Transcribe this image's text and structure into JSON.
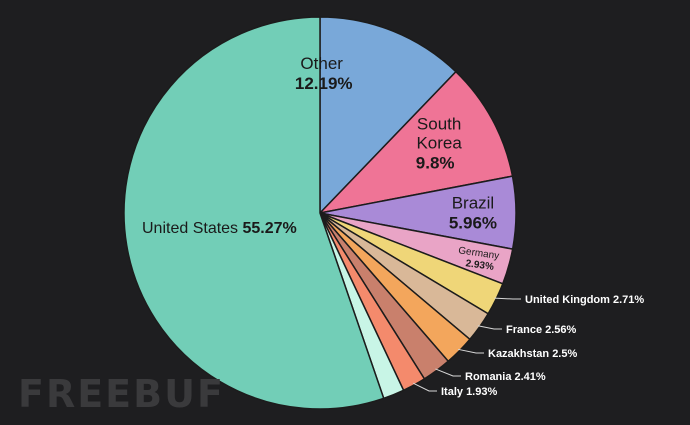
{
  "chart_data": {
    "type": "pie",
    "title": "",
    "slices": [
      {
        "label": "Other",
        "value": 12.19,
        "value_label": "12.19%",
        "color": "#79a8d9"
      },
      {
        "label": "South Korea",
        "value": 9.8,
        "value_label": "9.8%",
        "color": "#ef7496"
      },
      {
        "label": "Brazil",
        "value": 5.96,
        "value_label": "5.96%",
        "color": "#a98ad7"
      },
      {
        "label": "Germany",
        "value": 2.93,
        "value_label": "2.93%",
        "color": "#e9a4c6"
      },
      {
        "label": "United Kingdom",
        "value": 2.71,
        "value_label": "2.71%",
        "color": "#efd678"
      },
      {
        "label": "France",
        "value": 2.56,
        "value_label": "2.56%",
        "color": "#d9b898"
      },
      {
        "label": "Kazakhstan",
        "value": 2.5,
        "value_label": "2.5%",
        "color": "#f3a65c"
      },
      {
        "label": "Romania",
        "value": 2.41,
        "value_label": "2.41%",
        "color": "#c9806c"
      },
      {
        "label": "Italy",
        "value": 1.93,
        "value_label": "1.93%",
        "color": "#f48a6c"
      },
      {
        "label": "",
        "value": 1.74,
        "value_label": "",
        "color": "#c8f5e6"
      },
      {
        "label": "United States",
        "value": 55.27,
        "value_label": "55.27%",
        "color": "#72ceb7"
      }
    ]
  },
  "watermark": "FREEBUF",
  "colors": {
    "background": "#1e1e20",
    "slice_border": "#1c1c1c",
    "callout_text": "#ffffff",
    "inner_text": "#1a1a1a"
  }
}
